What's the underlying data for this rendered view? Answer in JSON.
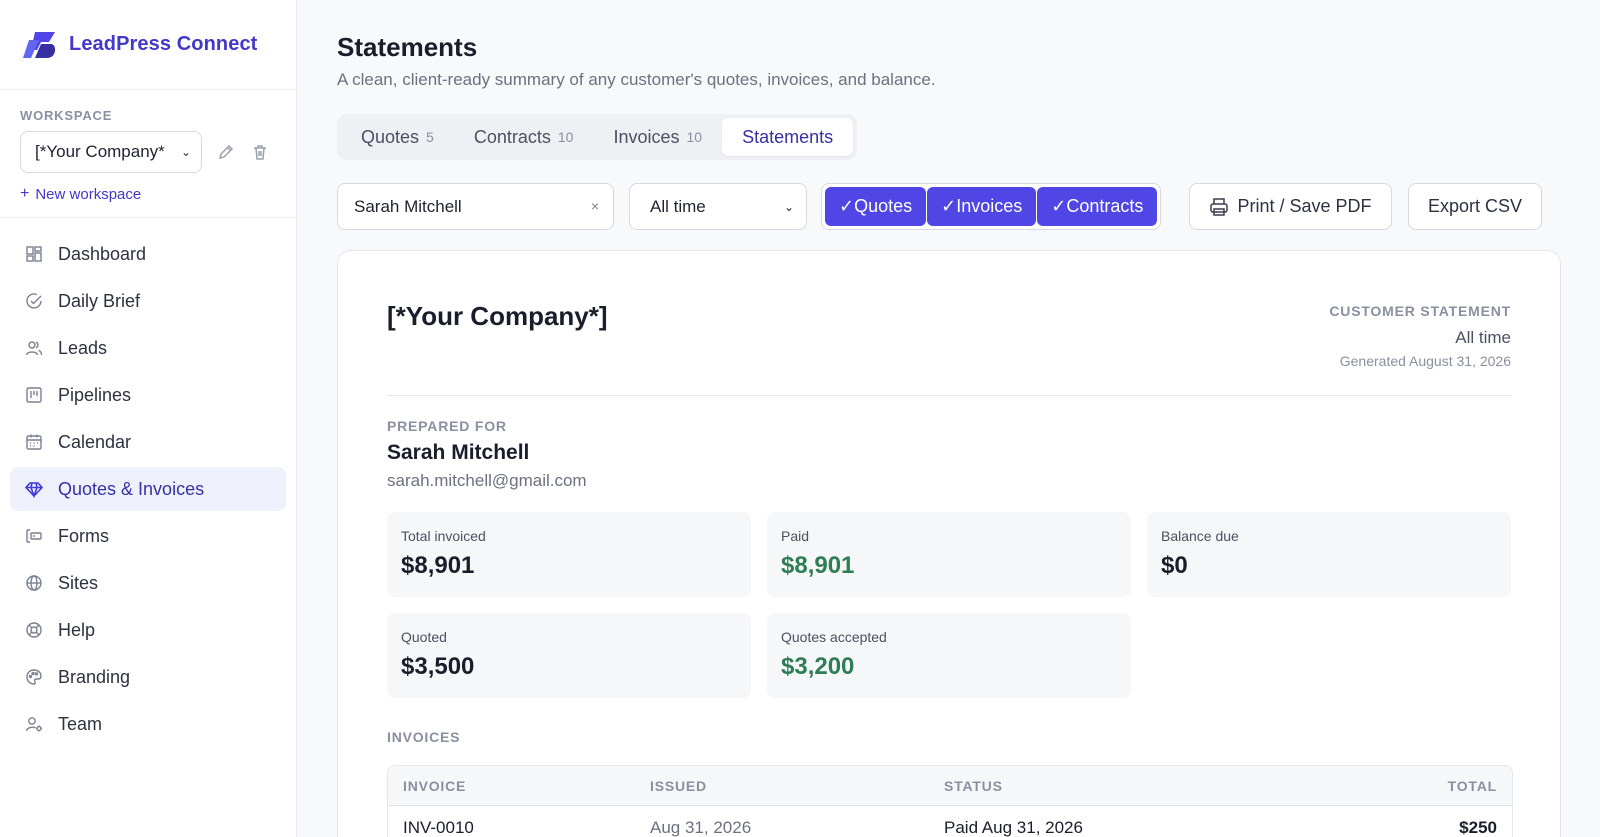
{
  "brand": {
    "name": "LeadPress Connect",
    "accent": "#4338ca"
  },
  "workspace": {
    "label": "WORKSPACE",
    "selected": "[*Your Company*",
    "new_label": "New workspace"
  },
  "nav": [
    {
      "label": "Dashboard",
      "icon": "dashboard-icon"
    },
    {
      "label": "Daily Brief",
      "icon": "check-circle-icon"
    },
    {
      "label": "Leads",
      "icon": "users-icon"
    },
    {
      "label": "Pipelines",
      "icon": "kanban-icon"
    },
    {
      "label": "Calendar",
      "icon": "calendar-icon"
    },
    {
      "label": "Quotes & Invoices",
      "icon": "diamond-icon",
      "active": true
    },
    {
      "label": "Forms",
      "icon": "form-icon"
    },
    {
      "label": "Sites",
      "icon": "globe-icon"
    },
    {
      "label": "Help",
      "icon": "lifebuoy-icon"
    },
    {
      "label": "Branding",
      "icon": "palette-icon"
    },
    {
      "label": "Team",
      "icon": "user-gear-icon"
    }
  ],
  "page": {
    "title": "Statements",
    "subtitle": "A clean, client-ready summary of any customer's quotes, invoices, and balance."
  },
  "tabs": [
    {
      "label": "Quotes",
      "count": "5"
    },
    {
      "label": "Contracts",
      "count": "10"
    },
    {
      "label": "Invoices",
      "count": "10"
    },
    {
      "label": "Statements",
      "count": "",
      "active": true
    }
  ],
  "toolbar": {
    "search_value": "Sarah Mitchell",
    "clear_glyph": "×",
    "period": "All time",
    "filters": [
      "✓Quotes",
      "✓Invoices",
      "✓Contracts"
    ],
    "print_label": "Print / Save PDF",
    "csv_label": "Export CSV"
  },
  "statement": {
    "company": "[*Your Company*]",
    "label": "CUSTOMER STATEMENT",
    "period": "All time",
    "generated": "Generated August 31, 2026",
    "prepared_label": "PREPARED FOR",
    "customer_name": "Sarah Mitchell",
    "customer_email": "sarah.mitchell@gmail.com",
    "stats": {
      "total_invoiced": {
        "label": "Total invoiced",
        "value": "$8,901"
      },
      "paid": {
        "label": "Paid",
        "value": "$8,901"
      },
      "balance": {
        "label": "Balance due",
        "value": "$0"
      },
      "quoted": {
        "label": "Quoted",
        "value": "$3,500"
      },
      "accepted": {
        "label": "Quotes accepted",
        "value": "$3,200"
      }
    },
    "invoices_label": "INVOICES",
    "invoice_columns": [
      "INVOICE",
      "ISSUED",
      "STATUS",
      "TOTAL"
    ],
    "invoices": [
      {
        "id": "INV-0010",
        "issued": "Aug 31, 2026",
        "status": "Paid Aug 31, 2026",
        "total": "$250"
      }
    ]
  },
  "colors": {
    "primary": "#4f46e5",
    "green": "#2e7d55"
  }
}
